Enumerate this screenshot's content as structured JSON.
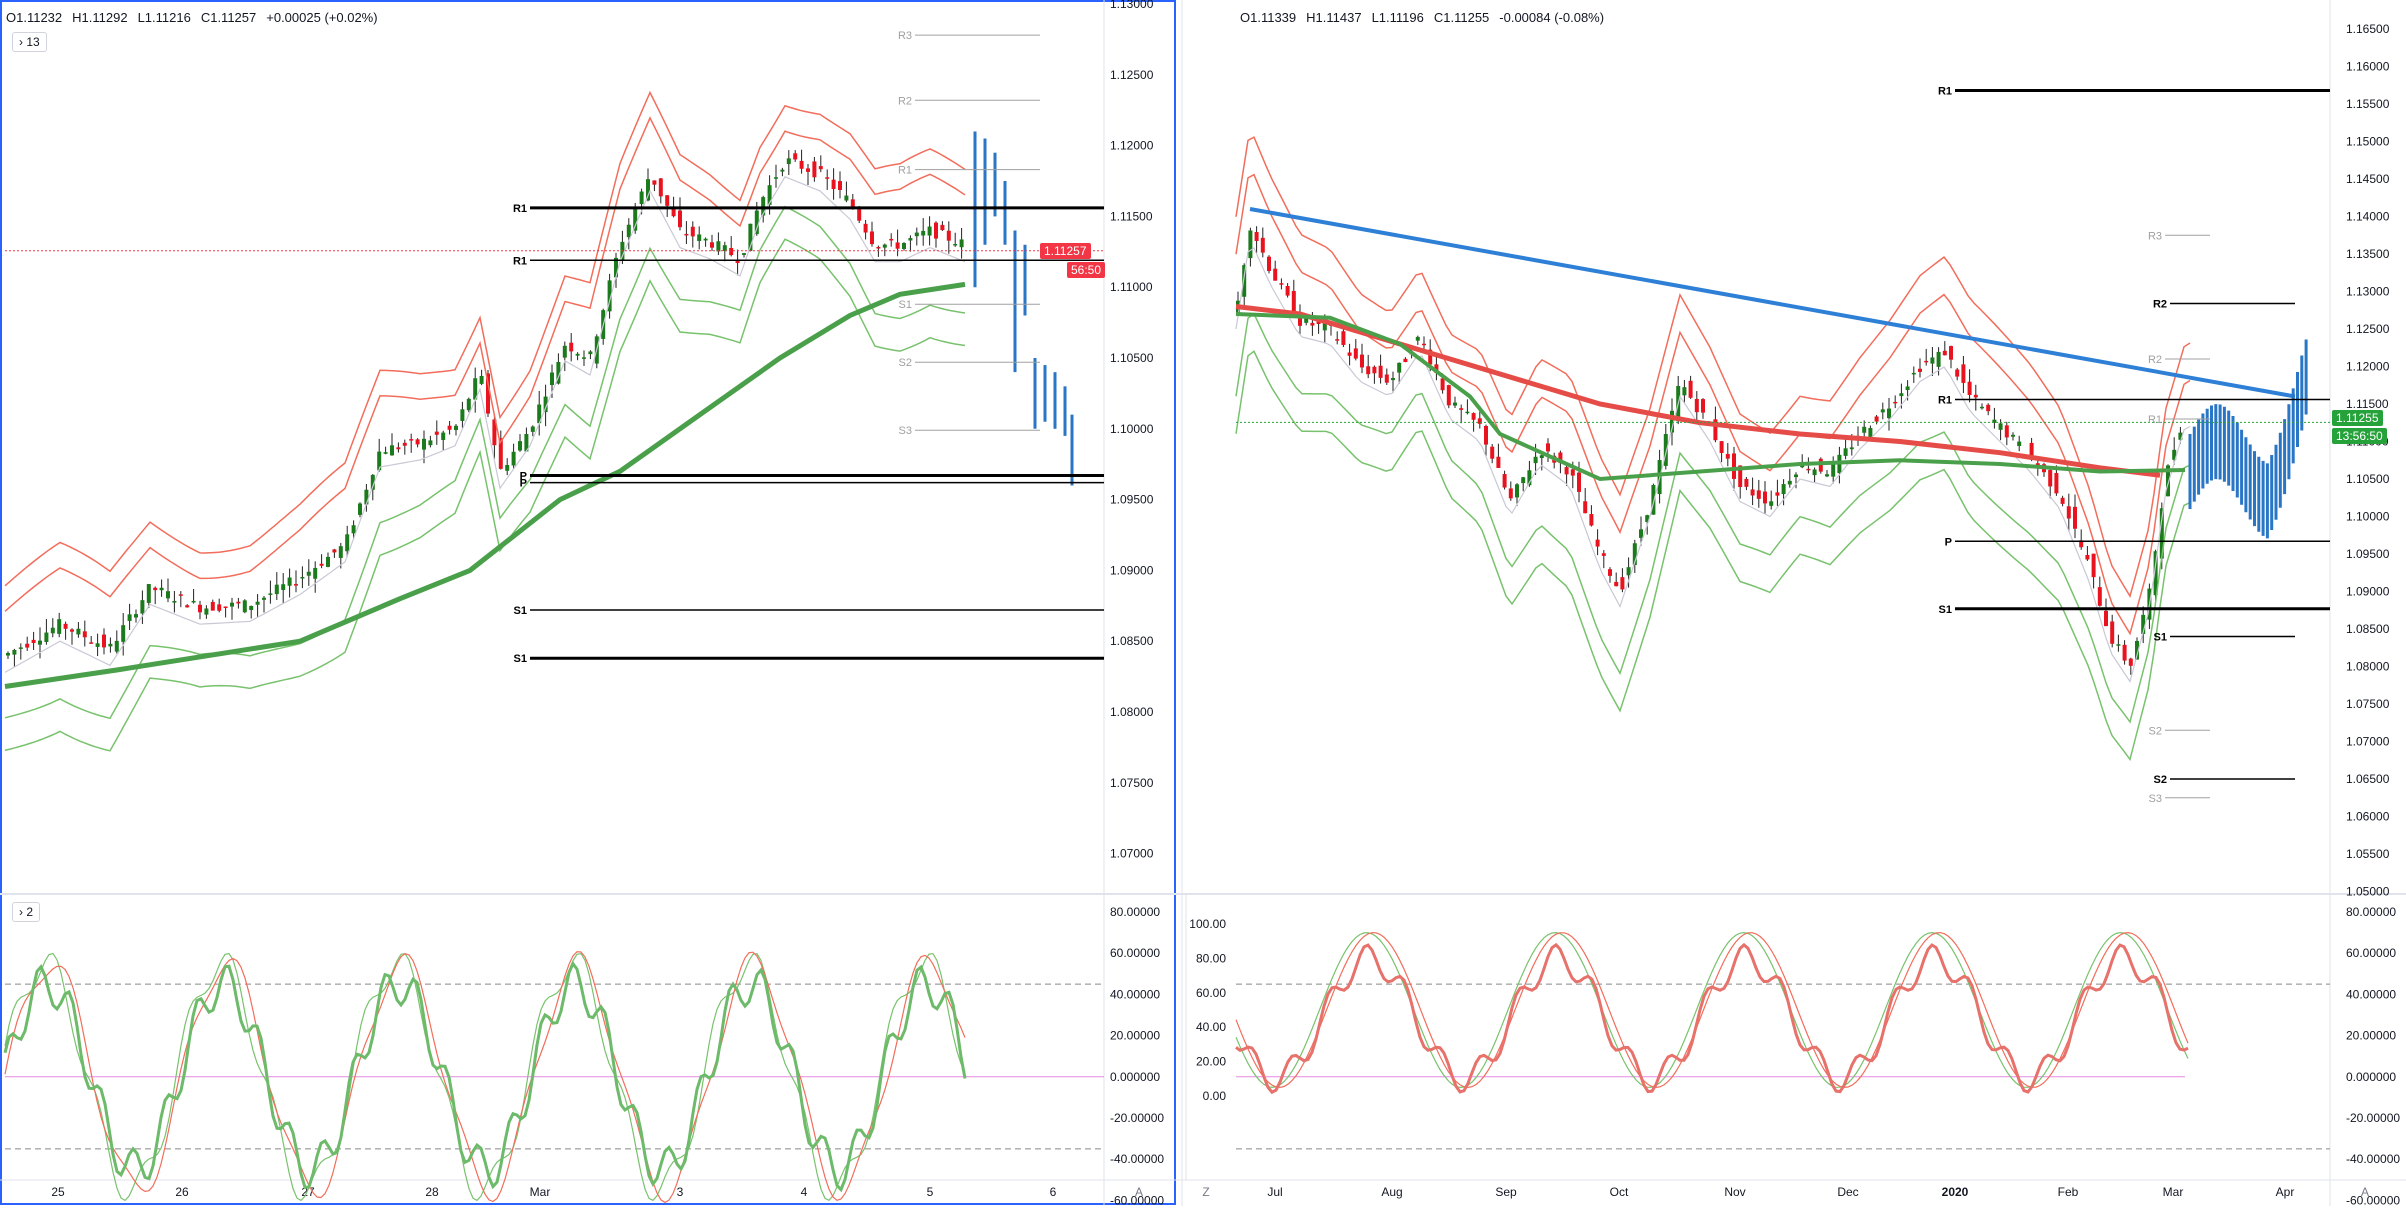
{
  "left": {
    "ohlc": {
      "o": "O1.11232",
      "h": "H1.11292",
      "l": "L1.11216",
      "c": "C1.11257",
      "chg": "+0.00025 (+0.02%)"
    },
    "chip_label": "13",
    "price_axis": [
      "1.13000",
      "1.12500",
      "1.12000",
      "1.11500",
      "1.11000",
      "1.10500",
      "1.10000",
      "1.09500",
      "1.09000",
      "1.08500",
      "1.08000",
      "1.07500",
      "1.07000"
    ],
    "price_tag": "1.11257",
    "countdown": "56:50",
    "pivots": [
      {
        "label": "R3",
        "price": 1.1278,
        "style": "grey"
      },
      {
        "label": "R2",
        "price": 1.1232,
        "style": "grey"
      },
      {
        "label": "R1",
        "price": 1.1183,
        "style": "grey"
      },
      {
        "label": "R1",
        "price": 1.1156,
        "style": "black-thick"
      },
      {
        "label": "R1",
        "price": 1.1119,
        "style": "black"
      },
      {
        "label": "S1",
        "price": 1.1088,
        "style": "grey"
      },
      {
        "label": "S2",
        "price": 1.1047,
        "style": "grey"
      },
      {
        "label": "S3",
        "price": 1.0999,
        "style": "grey"
      },
      {
        "label": "P",
        "price": 1.0967,
        "style": "black-thick"
      },
      {
        "label": "P",
        "price": 1.0962,
        "style": "black"
      },
      {
        "label": "S1",
        "price": 1.0872,
        "style": "black"
      },
      {
        "label": "S1",
        "price": 1.0838,
        "style": "black-thick"
      }
    ],
    "time_axis": [
      "25",
      "26",
      "27",
      "28",
      "Mar",
      "3",
      "4",
      "5",
      "6"
    ],
    "osc_chip": "2",
    "osc_axis": [
      "80.00000",
      "60.00000",
      "40.00000",
      "20.00000",
      "0.000000",
      "-20.00000",
      "-40.00000",
      "-60.00000"
    ],
    "axis_mode_label": "A"
  },
  "right": {
    "ohlc": {
      "o": "O1.11339",
      "h": "H1.11437",
      "l": "L1.11196",
      "c": "C1.11255",
      "chg": "-0.00084 (-0.08%)"
    },
    "price_axis": [
      "1.16500",
      "1.16000",
      "1.15500",
      "1.15000",
      "1.14500",
      "1.14000",
      "1.13500",
      "1.13000",
      "1.12500",
      "1.12000",
      "1.11500",
      "1.11000",
      "1.10500",
      "1.10000",
      "1.09500",
      "1.09000",
      "1.08500",
      "1.08000",
      "1.07500",
      "1.07000",
      "1.06500",
      "1.06000",
      "1.05500",
      "1.05000"
    ],
    "price_tag": "1.11255",
    "countdown": "13:56:50",
    "pivots": [
      {
        "label": "R1",
        "price": 1.1568,
        "style": "black-thick"
      },
      {
        "label": "R3",
        "price": 1.1375,
        "style": "grey"
      },
      {
        "label": "R2",
        "price": 1.1284,
        "style": "black"
      },
      {
        "label": "R2",
        "price": 1.121,
        "style": "grey"
      },
      {
        "label": "R1",
        "price": 1.1156,
        "style": "black"
      },
      {
        "label": "R1",
        "price": 1.113,
        "style": "grey"
      },
      {
        "label": "P",
        "price": 1.0967,
        "style": "black"
      },
      {
        "label": "S1",
        "price": 1.0877,
        "style": "black-thick"
      },
      {
        "label": "S1",
        "price": 1.084,
        "style": "black"
      },
      {
        "label": "S2",
        "price": 1.0715,
        "style": "grey"
      },
      {
        "label": "S2",
        "price": 1.065,
        "style": "black"
      },
      {
        "label": "S3",
        "price": 1.0625,
        "style": "grey"
      }
    ],
    "time_axis": [
      "Jul",
      "Aug",
      "Sep",
      "Oct",
      "Nov",
      "Dec",
      "2020",
      "Feb",
      "Mar",
      "Apr"
    ],
    "osc_axis_left": [
      "100.00",
      "80.00",
      "60.00",
      "40.00",
      "20.00",
      "0.00"
    ],
    "osc_axis_right": [
      "80.00000",
      "60.00000",
      "40.00000",
      "20.00000",
      "0.000000",
      "-20.00000",
      "-40.00000",
      "-60.00000"
    ],
    "axis_mode_label": "A",
    "zoom_label": "Z"
  },
  "colors": {
    "up": "#1b7a1b",
    "down": "#e8131e",
    "forecast": "#2a76c6",
    "band_red": "#f26d5b",
    "band_green": "#78c26d",
    "ma_green": "#4aa04a",
    "ma_red": "#e64c47",
    "trend": "#2e7fd6",
    "price_tag_red": "#f23645",
    "price_tag_green": "#26a23a",
    "pivot_grey": "#a0a0a0",
    "selection_border": "#2962ff"
  }
}
